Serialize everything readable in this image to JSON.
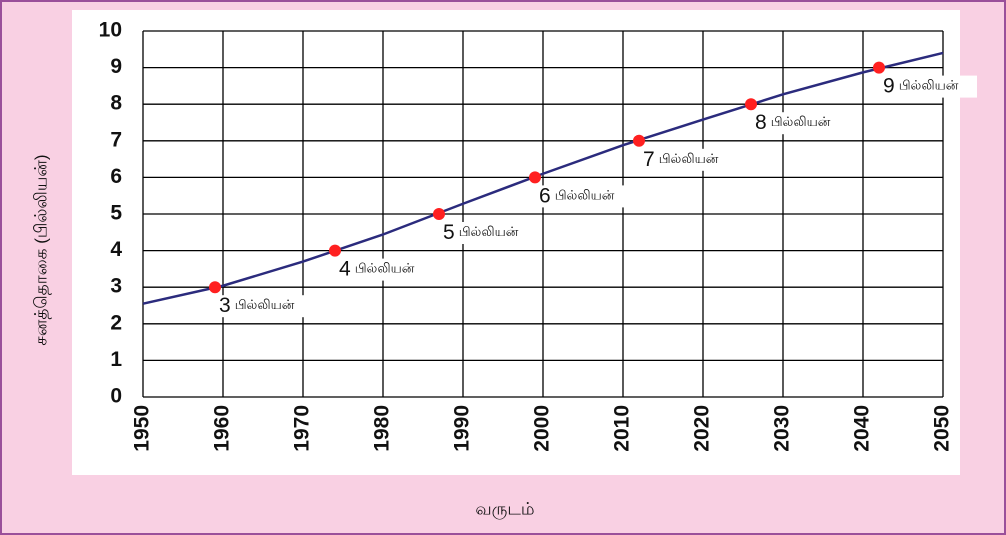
{
  "chart_data": {
    "type": "line",
    "y_label": "சனத்தொகை  (பில்லியன்)",
    "x_label": "வருடம்",
    "x": [
      1950,
      1960,
      1970,
      1980,
      1990,
      2000,
      2010,
      2020,
      2030,
      2040,
      2050
    ],
    "series": [
      {
        "name": "சனத்தொகை",
        "color": "#2b2b7d",
        "values": [
          2.55,
          3.04,
          3.7,
          4.44,
          5.28,
          6.1,
          6.88,
          7.58,
          8.27,
          8.87,
          9.4
        ]
      }
    ],
    "milestones": {
      "color": "#ff2020",
      "unit": "பில்லியன்",
      "x": [
        1959,
        1974,
        1987,
        1999,
        2012,
        2026,
        2042
      ],
      "values": [
        3,
        4,
        5,
        6,
        7,
        8,
        9
      ]
    },
    "xlim": [
      1950,
      2050
    ],
    "xticks": [
      1950,
      1960,
      1970,
      1980,
      1990,
      2000,
      2010,
      2020,
      2030,
      2040,
      2050
    ],
    "ylim": [
      0,
      10
    ],
    "yticks": [
      0,
      1,
      2,
      3,
      4,
      5,
      6,
      7,
      8,
      9,
      10
    ],
    "grid": true
  }
}
